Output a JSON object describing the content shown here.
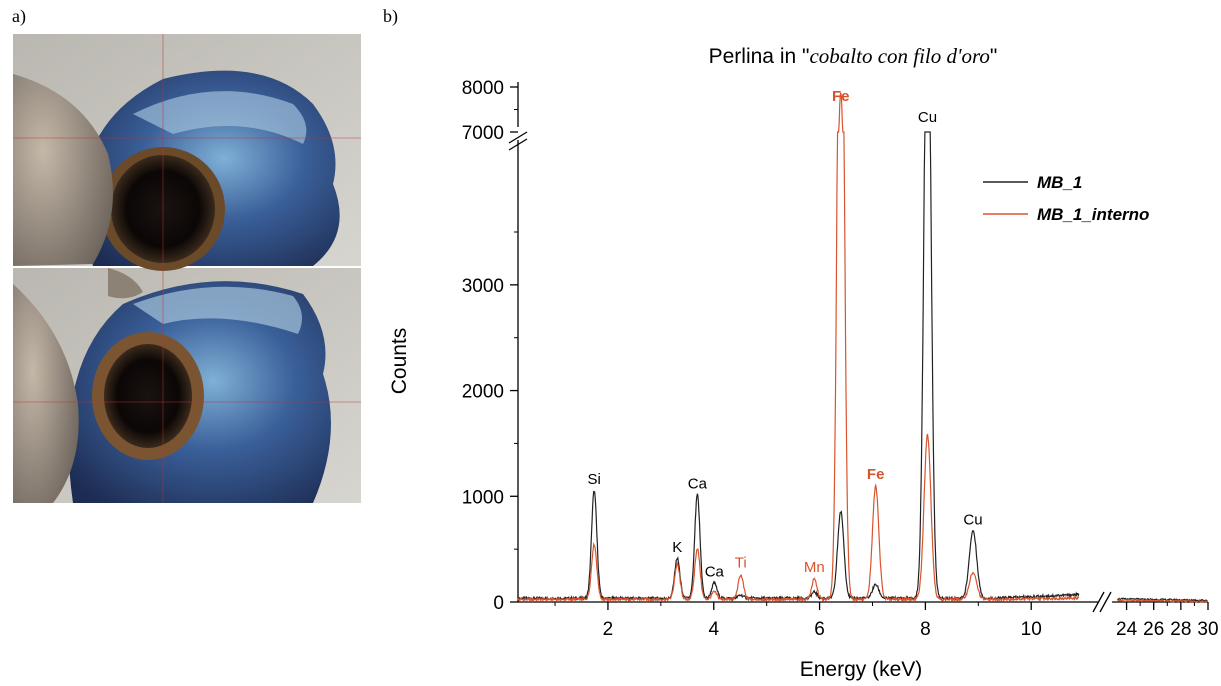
{
  "panel_a_label": "a)",
  "panel_b_label": "b)",
  "photo": {
    "description_icon": "bead-photo"
  },
  "chart_data": {
    "type": "line",
    "title_prefix": "Perlina in \"",
    "title_italic": "cobalto con filo d'oro",
    "title_suffix": "\"",
    "xlabel": "Energy (keV)",
    "ylabel": "Counts",
    "x_ticks_main": [
      2,
      4,
      6,
      8,
      10
    ],
    "x_ticks_tail": [
      24,
      26,
      28,
      30
    ],
    "y_ticks_main": [
      0,
      1000,
      2000,
      3000
    ],
    "y_ticks_upper": [
      7000,
      8000
    ],
    "xlim_main": [
      0.3,
      11.3
    ],
    "xlim_tail": [
      23,
      30
    ],
    "ylim_main": [
      0,
      4200
    ],
    "ylim_upper": [
      6600,
      8000
    ],
    "legend_position": "right",
    "series": [
      {
        "name": "MB_1",
        "color": "#222222",
        "baseline": 35,
        "peaks": [
          {
            "x": 1.74,
            "y": 1020,
            "w": 0.05
          },
          {
            "x": 3.31,
            "y": 380,
            "w": 0.05
          },
          {
            "x": 3.69,
            "y": 980,
            "w": 0.05
          },
          {
            "x": 4.01,
            "y": 145,
            "w": 0.05
          },
          {
            "x": 4.51,
            "y": 30,
            "w": 0.05
          },
          {
            "x": 5.9,
            "y": 60,
            "w": 0.05
          },
          {
            "x": 6.4,
            "y": 820,
            "w": 0.06
          },
          {
            "x": 7.06,
            "y": 130,
            "w": 0.06
          },
          {
            "x": 8.04,
            "y": 6200,
            "w": 0.065
          },
          {
            "x": 8.9,
            "y": 640,
            "w": 0.07
          }
        ]
      },
      {
        "name": "MB_1_interno",
        "color": "#d9532e",
        "baseline": 25,
        "peaks": [
          {
            "x": 1.74,
            "y": 520,
            "w": 0.05
          },
          {
            "x": 3.31,
            "y": 330,
            "w": 0.05
          },
          {
            "x": 3.69,
            "y": 480,
            "w": 0.05
          },
          {
            "x": 4.01,
            "y": 70,
            "w": 0.05
          },
          {
            "x": 4.51,
            "y": 230,
            "w": 0.05
          },
          {
            "x": 5.9,
            "y": 190,
            "w": 0.05
          },
          {
            "x": 6.4,
            "y": 7800,
            "w": 0.06
          },
          {
            "x": 7.06,
            "y": 1070,
            "w": 0.06
          },
          {
            "x": 8.04,
            "y": 1560,
            "w": 0.065
          },
          {
            "x": 8.9,
            "y": 250,
            "w": 0.07
          }
        ]
      }
    ],
    "annotations": [
      {
        "text": "Si",
        "x": 1.74,
        "y": 1020,
        "color": "#000000",
        "bold": false
      },
      {
        "text": "K",
        "x": 3.31,
        "y": 380,
        "color": "#000000",
        "bold": false
      },
      {
        "text": "Ca",
        "x": 3.69,
        "y": 980,
        "color": "#000000",
        "bold": false
      },
      {
        "text": "Ca",
        "x": 4.01,
        "y": 145,
        "color": "#000000",
        "bold": false
      },
      {
        "text": "Ti",
        "x": 4.51,
        "y": 230,
        "color": "#d9532e",
        "bold": false
      },
      {
        "text": "Mn",
        "x": 5.9,
        "y": 190,
        "color": "#d9532e",
        "bold": false
      },
      {
        "text": "Fe",
        "x": 6.4,
        "y": 7800,
        "color": "#d9532e",
        "bold": true
      },
      {
        "text": "Fe",
        "x": 7.06,
        "y": 1070,
        "color": "#d9532e",
        "bold": true
      },
      {
        "text": "Cu",
        "x": 8.04,
        "y": 6200,
        "color": "#000000",
        "bold": false
      },
      {
        "text": "Cu",
        "x": 8.9,
        "y": 640,
        "color": "#000000",
        "bold": false
      }
    ]
  }
}
